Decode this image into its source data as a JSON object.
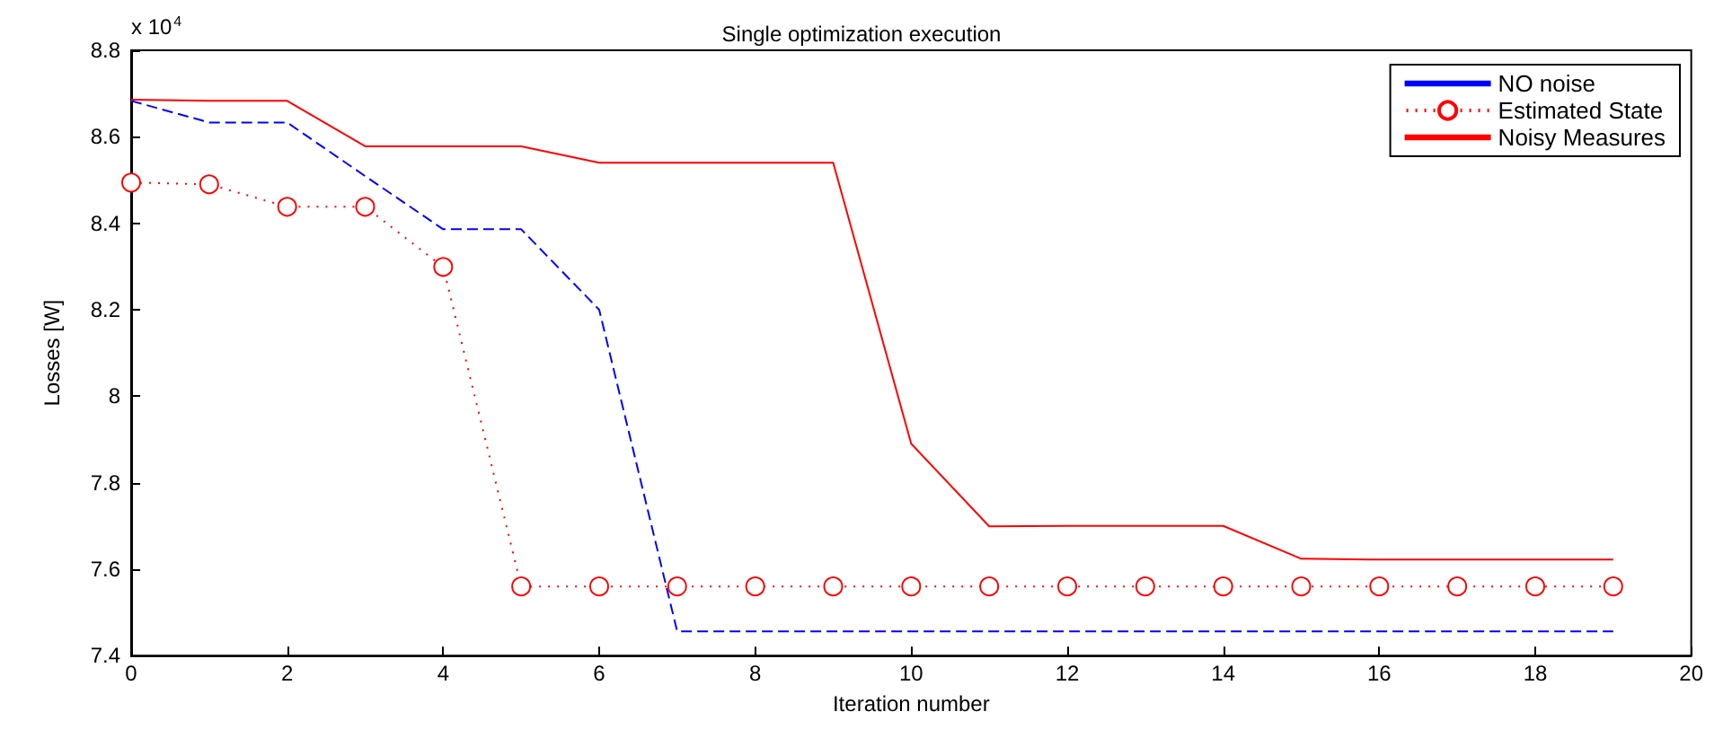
{
  "chart_data": {
    "type": "line",
    "title": "Single optimization execution",
    "xlabel": "Iteration number",
    "ylabel": "Losses [W]",
    "annotations": [
      "x 10$^{4}$"
    ],
    "x": [
      0,
      1,
      2,
      3,
      4,
      5,
      6,
      7,
      8,
      9,
      10,
      11,
      12,
      13,
      14,
      15,
      16,
      17,
      18,
      19
    ],
    "series": [
      {
        "name": "NO noise",
        "color": "#0000ff",
        "line_style": "dashed",
        "marker": "none",
        "values": [
          8.683,
          8.633,
          8.633,
          8.509,
          8.386,
          8.386,
          8.2,
          7.456,
          7.456,
          7.456,
          7.456,
          7.456,
          7.456,
          7.456,
          7.456,
          7.456,
          7.456,
          7.456,
          7.456,
          7.456
        ]
      },
      {
        "name": "Estimated State",
        "color": "#ff0000",
        "line_style": "dotted",
        "marker": "circle",
        "values": [
          8.494,
          8.49,
          8.438,
          8.438,
          8.299,
          7.56,
          7.56,
          7.56,
          7.56,
          7.56,
          7.56,
          7.56,
          7.56,
          7.56,
          7.56,
          7.56,
          7.56,
          7.56,
          7.56,
          7.56
        ]
      },
      {
        "name": "Noisy Measures",
        "color": "#ff0000",
        "line_style": "solid",
        "marker": "none",
        "values": [
          8.686,
          8.683,
          8.683,
          8.578,
          8.578,
          8.578,
          8.54,
          8.54,
          8.54,
          8.54,
          7.89,
          7.699,
          7.7,
          7.7,
          7.7,
          7.624,
          7.622,
          7.622,
          7.622,
          7.622
        ]
      }
    ],
    "xlim": [
      0,
      20
    ],
    "xticks": [
      0,
      2,
      4,
      6,
      8,
      10,
      12,
      14,
      16,
      18,
      20
    ],
    "ylim": [
      7.4,
      8.8
    ],
    "yticks": [
      7.4,
      7.6,
      7.8,
      8,
      8.2,
      8.4,
      8.6,
      8.8
    ],
    "grid": false,
    "legend": "top right"
  }
}
